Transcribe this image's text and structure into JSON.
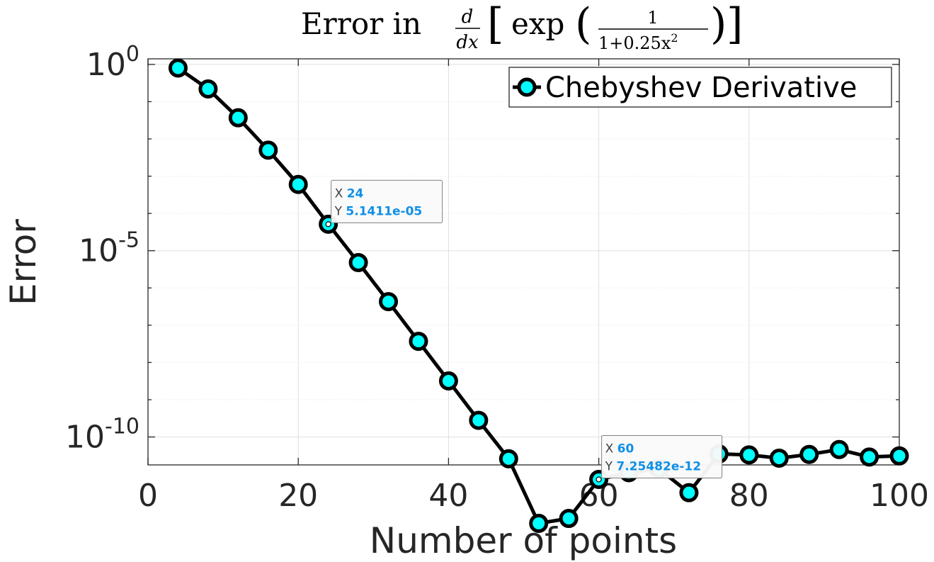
{
  "chart_data": {
    "type": "line",
    "title": {
      "prefix": "Error in",
      "derivative_num": "d",
      "derivative_den": "dx",
      "func": "exp",
      "frac_num": "1",
      "frac_den_text": "1+0.25x",
      "frac_den_sup": "2"
    },
    "xlabel": "Number of points",
    "ylabel": "Error",
    "xlim": [
      0,
      100
    ],
    "ylim_log10": [
      -10.75,
      0.15
    ],
    "yscale": "log",
    "grid": true,
    "legend_position": "top-right",
    "x_ticks": [
      0,
      20,
      40,
      60,
      80,
      100
    ],
    "x_tick_labels": [
      "0",
      "20",
      "40",
      "60",
      "80",
      "100"
    ],
    "y_ticks_exp": [
      0,
      -5,
      -10
    ],
    "y_tick_base": "10",
    "y_tick_exps": [
      "0",
      "-5",
      "-10"
    ],
    "series": [
      {
        "name": "Chebyshev Derivative",
        "color": "#000000",
        "marker_face": "#00ffff",
        "marker_edge": "#000000",
        "x": [
          4,
          8,
          12,
          16,
          20,
          24,
          28,
          32,
          36,
          40,
          44,
          48,
          52,
          56,
          60,
          64,
          68,
          72,
          76,
          80,
          84,
          88,
          92,
          96,
          100
        ],
        "y": [
          0.8,
          0.22,
          0.037,
          0.005,
          0.0006,
          5.1411e-05,
          4.8e-06,
          4.3e-07,
          3.7e-08,
          3.2e-09,
          2.8e-10,
          2.6e-11,
          4.8e-13,
          6.5e-13,
          7.25482e-12,
          1.1e-11,
          1.4e-11,
          3.2e-12,
          3.5e-11,
          3.3e-11,
          2.7e-11,
          3.4e-11,
          4.6e-11,
          2.9e-11,
          3.1e-11
        ]
      }
    ],
    "datatips": [
      {
        "x_key": "X",
        "x_value": "24",
        "y_key": "Y",
        "y_value": "5.1411e-05",
        "x": 24,
        "y": 5.1411e-05
      },
      {
        "x_key": "X",
        "x_value": "60",
        "y_key": "Y",
        "y_value": "7.25482e-12",
        "x": 60,
        "y": 7.25482e-12
      }
    ]
  }
}
